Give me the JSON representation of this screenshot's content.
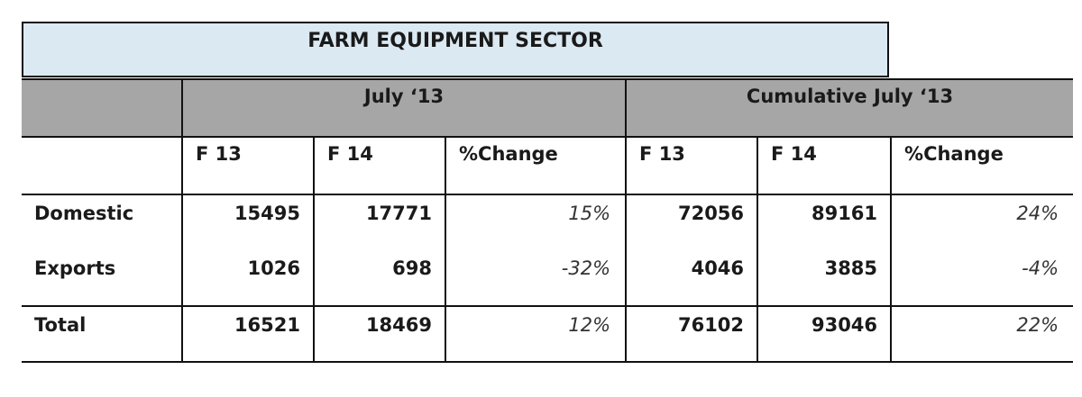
{
  "title": "FARM EQUIPMENT SECTOR",
  "groups": [
    "July ‘13",
    "Cumulative July ‘13"
  ],
  "columns": [
    "F 13",
    "F 14",
    "%Change",
    "F 13",
    "F 14",
    "%Change"
  ],
  "rows": [
    {
      "label": "Domestic",
      "values": [
        "15495",
        "17771",
        "15%",
        "72056",
        "89161",
        "24%"
      ]
    },
    {
      "label": "Exports",
      "values": [
        "1026",
        "698",
        "-32%",
        "4046",
        "3885",
        "-4%"
      ]
    },
    {
      "label": "Total",
      "values": [
        "16521",
        "18469",
        "12%",
        "76102",
        "93046",
        "22%"
      ]
    }
  ]
}
